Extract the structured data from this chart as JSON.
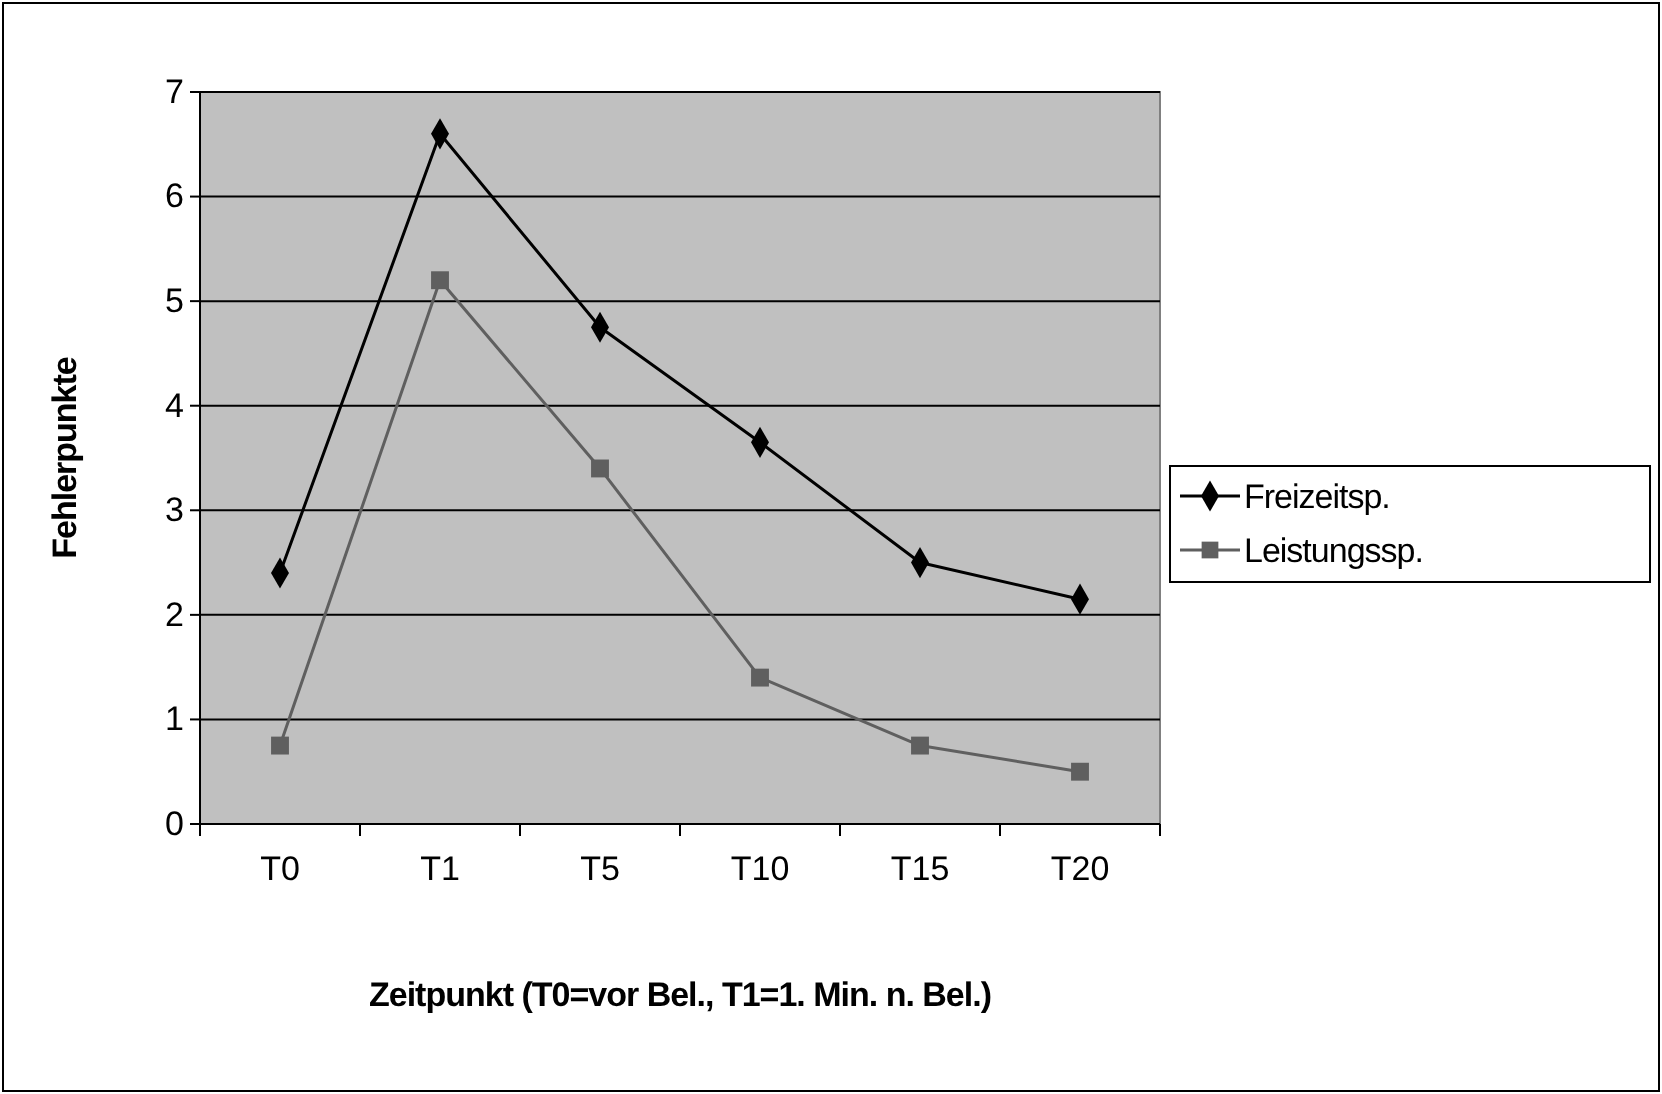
{
  "chart_data": {
    "type": "line",
    "xlabel": "Zeitpunkt (T0=vor Bel., T1=1. Min. n. Bel.)",
    "ylabel": "Fehlerpunkte",
    "categories": [
      "T0",
      "T1",
      "T5",
      "T10",
      "T15",
      "T20"
    ],
    "series": [
      {
        "name": "Freizeitsp.",
        "color": "#000000",
        "marker": "diamond",
        "values": [
          2.4,
          6.6,
          4.75,
          3.65,
          2.5,
          2.15
        ]
      },
      {
        "name": "Leistungssp.",
        "color": "#5f5f5f",
        "marker": "square",
        "values": [
          0.75,
          5.2,
          3.4,
          1.4,
          0.75,
          0.5
        ]
      }
    ],
    "ylim": [
      0,
      7
    ],
    "yticks": [
      0,
      1,
      2,
      3,
      4,
      5,
      6,
      7
    ],
    "grid": "y",
    "legend": "right"
  }
}
